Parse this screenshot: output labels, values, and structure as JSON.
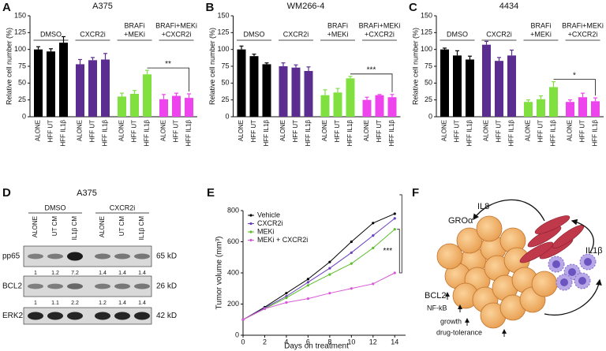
{
  "chart_data": [
    {
      "type": "bar",
      "panel": "A",
      "title": "A375",
      "y_label": "Relative cell number (%)",
      "groups": [
        [
          "DMSO"
        ],
        [
          "CXCR2i"
        ],
        [
          "BRAFi",
          "+MEKi"
        ],
        [
          "BRAFi+MEKi",
          "+CXCR2i"
        ]
      ],
      "categories": [
        "ALONE",
        "HFF UT",
        "HFF IL1β",
        "ALONE",
        "HFF UT",
        "HFF IL1β",
        "ALONE",
        "HFF UT",
        "HFF IL1β",
        "ALONE",
        "HFF UT",
        "HFF IL1β"
      ],
      "values": [
        100,
        97,
        110,
        78,
        84,
        85,
        30,
        34,
        63,
        26,
        31,
        28
      ],
      "errors": [
        4,
        4,
        9,
        7,
        4,
        9,
        5,
        5,
        6,
        7,
        4,
        6
      ],
      "colors": [
        "#000000",
        "#5b2d91",
        "#80e040",
        "#ee44ee"
      ],
      "ylim": [
        0,
        150
      ],
      "yticks": [
        0,
        25,
        50,
        75,
        100,
        125,
        150
      ],
      "significance": "**"
    },
    {
      "type": "bar",
      "panel": "B",
      "title": "WM266-4",
      "y_label": "Relative cell number (%)",
      "groups": [
        [
          "DMSO"
        ],
        [
          "CXCR2i"
        ],
        [
          "BRAFi",
          "+MEKi"
        ],
        [
          "BRAFi+MEKi",
          "+CXCR2i"
        ]
      ],
      "categories": [
        "ALONE",
        "HFF UT",
        "HFF IL1β",
        "ALONE",
        "HFF UT",
        "HFF IL1β",
        "ALONE",
        "HFF UT",
        "HFF IL1β",
        "ALONE",
        "HFF UT",
        "HFF IL1β"
      ],
      "values": [
        100,
        90,
        78,
        75,
        73,
        68,
        32,
        36,
        57,
        25,
        32,
        29
      ],
      "errors": [
        5,
        3,
        2,
        5,
        4,
        6,
        8,
        6,
        3,
        4,
        1,
        4
      ],
      "colors": [
        "#000000",
        "#5b2d91",
        "#80e040",
        "#ee44ee"
      ],
      "ylim": [
        0,
        150
      ],
      "yticks": [
        0,
        25,
        50,
        75,
        100,
        125,
        150
      ],
      "significance": "***"
    },
    {
      "type": "bar",
      "panel": "C",
      "title": "4434",
      "y_label": "Relative cell number (%)",
      "groups": [
        [
          "DMSO"
        ],
        [
          "CXCR2i"
        ],
        [
          "BRAFi",
          "+MEKi"
        ],
        [
          "BRAFi+MEKi",
          "+CXCR2i"
        ]
      ],
      "categories": [
        "ALONE",
        "HFF UT",
        "HFF IL1β",
        "ALONE",
        "HFF UT",
        "HFF IL1β",
        "ALONE",
        "HFF UT",
        "HFF IL1β",
        "ALONE",
        "HFF UT",
        "HFF IL1β"
      ],
      "values": [
        100,
        91,
        85,
        107,
        83,
        91,
        22,
        26,
        44,
        22,
        29,
        23
      ],
      "errors": [
        2,
        7,
        5,
        5,
        5,
        8,
        3,
        5,
        8,
        3,
        6,
        5
      ],
      "colors": [
        "#000000",
        "#5b2d91",
        "#80e040",
        "#ee44ee"
      ],
      "ylim": [
        0,
        150
      ],
      "yticks": [
        0,
        25,
        50,
        75,
        100,
        125,
        150
      ],
      "significance": "*"
    },
    {
      "type": "line",
      "panel": "E",
      "x_label": "Days on treatment",
      "y_label": "Tumor volume (mm³)",
      "x": [
        0,
        2,
        4,
        6,
        8,
        10,
        12,
        14
      ],
      "series": [
        {
          "name": "Vehicle",
          "color": "#000000",
          "values": [
            100,
            180,
            270,
            360,
            470,
            600,
            720,
            780
          ]
        },
        {
          "name": "CXCR2i",
          "color": "#6a3fc0",
          "values": [
            100,
            175,
            250,
            340,
            430,
            530,
            640,
            750
          ]
        },
        {
          "name": "MEKi",
          "color": "#5cbf2a",
          "values": [
            100,
            170,
            240,
            320,
            390,
            460,
            560,
            680
          ]
        },
        {
          "name": "MEKi + CXCR2i",
          "color": "#d65ad6",
          "values": [
            100,
            170,
            210,
            235,
            270,
            300,
            330,
            400
          ]
        }
      ],
      "xlim": [
        0,
        15
      ],
      "ylim": [
        0,
        800
      ],
      "xticks": [
        0,
        2,
        4,
        6,
        8,
        10,
        12,
        14
      ],
      "yticks": [
        0,
        200,
        400,
        600,
        800
      ],
      "legend": "upper left",
      "significance": "***"
    }
  ],
  "blot": {
    "panel": "D",
    "title": "A375",
    "groups": [
      "DMSO",
      "CXCR2i"
    ],
    "lanes": [
      "ALONE",
      "UT CM",
      "IL1β CM",
      "ALONE",
      "UT CM",
      "IL1β CM"
    ],
    "rows": [
      {
        "name": "pp65",
        "size": "65 kD",
        "quant": [
          1,
          1.2,
          7.2,
          1.4,
          1.4,
          1.4
        ]
      },
      {
        "name": "BCL2",
        "size": "26 kD",
        "quant": [
          1,
          1.1,
          2.2,
          1.2,
          1.4,
          1.4
        ]
      },
      {
        "name": "ERK2",
        "size": "42 kD"
      }
    ]
  },
  "diagram": {
    "panel": "F",
    "labels": [
      "IL8",
      "GROα",
      "IL1β",
      "BCL2",
      "NF-kB",
      "growth",
      "drug-tolerance"
    ]
  }
}
